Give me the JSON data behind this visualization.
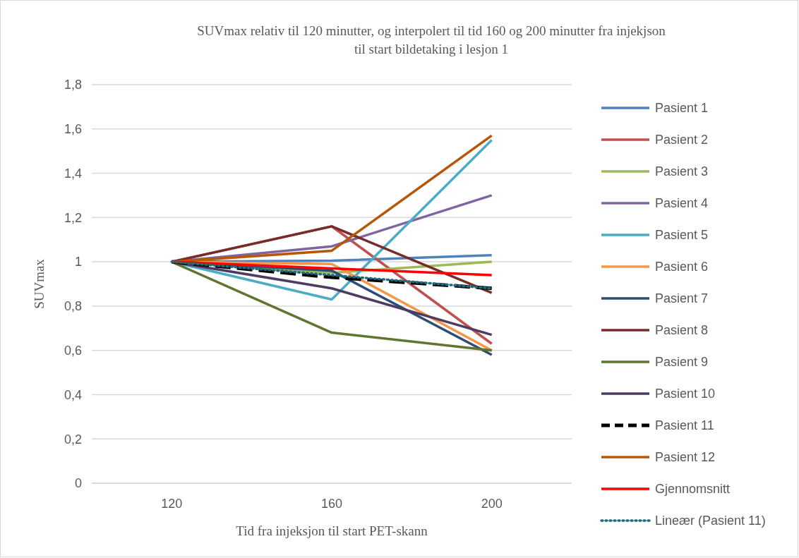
{
  "chart_data": {
    "type": "line",
    "title": "SUVmax relativ til 120 minutter, og interpolert til tid 160 og 200 minutter fra injekjson til start bildetaking i lesjon 1",
    "xlabel": "Tid fra injeksjon til start PET-skann",
    "ylabel": "SUVmax",
    "x": [
      120,
      160,
      200
    ],
    "xlim": [
      100,
      220
    ],
    "xticks": [
      120,
      160,
      200
    ],
    "ylim": [
      0,
      1.8
    ],
    "yticks": [
      0,
      {
        "value": 0.2,
        "label": "0,2"
      },
      {
        "value": 0.4,
        "label": "0,4"
      },
      {
        "value": 0.6,
        "label": "0,6"
      },
      {
        "value": 0.8,
        "label": "0,8"
      },
      1,
      {
        "value": 1.2,
        "label": "1,2"
      },
      {
        "value": 1.4,
        "label": "1,4"
      },
      {
        "value": 1.6,
        "label": "1,6"
      },
      {
        "value": 1.8,
        "label": "1,8"
      }
    ],
    "grid": "y",
    "legend": "right",
    "marker": "none",
    "series": [
      {
        "name": "Pasient 1",
        "color": "#4f81bd",
        "values": [
          1,
          1.005,
          1.03
        ]
      },
      {
        "name": "Pasient 2",
        "color": "#c0504d",
        "values": [
          1,
          1.16,
          0.63
        ]
      },
      {
        "name": "Pasient 3",
        "color": "#9bbb59",
        "values": [
          1,
          0.95,
          1.0
        ]
      },
      {
        "name": "Pasient 4",
        "color": "#8064a2",
        "values": [
          1,
          1.07,
          1.3
        ]
      },
      {
        "name": "Pasient 5",
        "color": "#4bacc6",
        "values": [
          1,
          0.83,
          1.55
        ]
      },
      {
        "name": "Pasient 6",
        "color": "#f79646",
        "values": [
          1,
          0.99,
          0.6
        ]
      },
      {
        "name": "Pasient 7",
        "color": "#2c4d75",
        "values": [
          1,
          0.96,
          0.58
        ]
      },
      {
        "name": "Pasient 8",
        "color": "#772c2a",
        "values": [
          1,
          1.16,
          0.86
        ]
      },
      {
        "name": "Pasient 9",
        "color": "#5f7530",
        "values": [
          1,
          0.68,
          0.6
        ]
      },
      {
        "name": "Pasient 10",
        "color": "#4d3b62",
        "values": [
          1,
          0.88,
          0.67
        ]
      },
      {
        "name": "Pasient 11",
        "color": "#000000",
        "values": [
          1,
          0.93,
          0.88
        ],
        "line_style": "dashed"
      },
      {
        "name": "Pasient 12",
        "color": "#b65708",
        "values": [
          1,
          1.05,
          1.57
        ]
      },
      {
        "name": "Gjennomsnitt",
        "color": "#ff0000",
        "values": [
          1,
          0.97,
          0.94
        ]
      },
      {
        "name": "Lineær (Pasient 11)",
        "color": "#1f6b7a",
        "x": [
          120,
          200
        ],
        "values": [
          1.0,
          0.88
        ],
        "line_style": "dotted"
      }
    ]
  }
}
